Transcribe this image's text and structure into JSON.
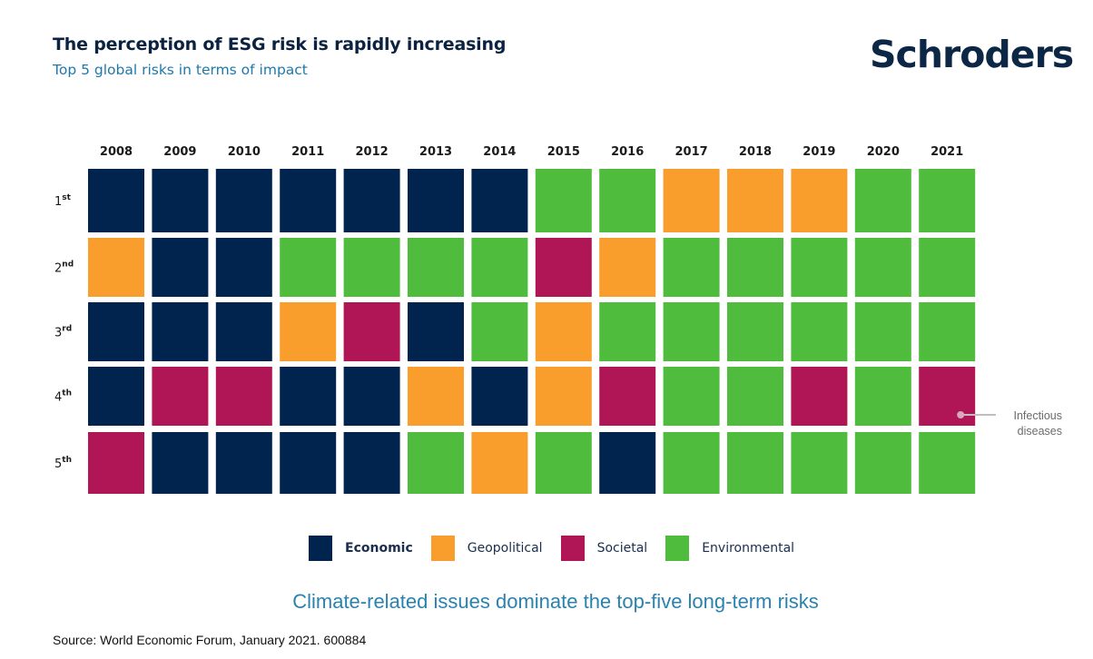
{
  "header": {
    "title": "The perception of ESG risk is rapidly increasing",
    "subtitle": "Top 5 global risks in terms of impact",
    "logo": "Schroders"
  },
  "colors": {
    "Economic": "#00244d",
    "Geopolitical": "#f99d2c",
    "Societal": "#b01655",
    "Environmental": "#50bc3e"
  },
  "chart_data": {
    "type": "heatmap",
    "title": "Top 5 global risks in terms of impact",
    "x": [
      "2008",
      "2009",
      "2010",
      "2011",
      "2012",
      "2013",
      "2014",
      "2015",
      "2016",
      "2017",
      "2018",
      "2019",
      "2020",
      "2021"
    ],
    "y": [
      "1st",
      "2nd",
      "3rd",
      "4th",
      "5th"
    ],
    "y_labels": [
      {
        "num": "1",
        "suffix": "st"
      },
      {
        "num": "2",
        "suffix": "nd"
      },
      {
        "num": "3",
        "suffix": "rd"
      },
      {
        "num": "4",
        "suffix": "th"
      },
      {
        "num": "5",
        "suffix": "th"
      }
    ],
    "categories": [
      "Economic",
      "Geopolitical",
      "Societal",
      "Environmental"
    ],
    "cells": [
      [
        "Economic",
        "Economic",
        "Economic",
        "Economic",
        "Economic",
        "Economic",
        "Economic",
        "Environmental",
        "Environmental",
        "Geopolitical",
        "Geopolitical",
        "Geopolitical",
        "Environmental",
        "Environmental"
      ],
      [
        "Geopolitical",
        "Economic",
        "Economic",
        "Environmental",
        "Environmental",
        "Environmental",
        "Environmental",
        "Societal",
        "Geopolitical",
        "Environmental",
        "Environmental",
        "Environmental",
        "Environmental",
        "Environmental"
      ],
      [
        "Economic",
        "Economic",
        "Economic",
        "Geopolitical",
        "Societal",
        "Economic",
        "Environmental",
        "Geopolitical",
        "Environmental",
        "Environmental",
        "Environmental",
        "Environmental",
        "Environmental",
        "Environmental"
      ],
      [
        "Economic",
        "Societal",
        "Societal",
        "Economic",
        "Economic",
        "Geopolitical",
        "Economic",
        "Geopolitical",
        "Societal",
        "Environmental",
        "Environmental",
        "Societal",
        "Environmental",
        "Societal"
      ],
      [
        "Societal",
        "Economic",
        "Economic",
        "Economic",
        "Economic",
        "Environmental",
        "Geopolitical",
        "Environmental",
        "Economic",
        "Environmental",
        "Environmental",
        "Environmental",
        "Environmental",
        "Environmental"
      ]
    ],
    "annotations": [
      {
        "year": "2021",
        "rank": "4th",
        "text_lines": [
          "Infectious",
          "diseases"
        ]
      }
    ],
    "legend": "bottom-center"
  },
  "legend": {
    "items": [
      {
        "label": "Economic",
        "color": "#00244d"
      },
      {
        "label": "Geopolitical",
        "color": "#f99d2c"
      },
      {
        "label": "Societal",
        "color": "#b01655"
      },
      {
        "label": "Environmental",
        "color": "#50bc3e"
      }
    ]
  },
  "footer": {
    "tagline": "Climate-related issues dominate the top-five long-term risks",
    "source": "Source: World Economic Forum, January 2021. 600884"
  }
}
